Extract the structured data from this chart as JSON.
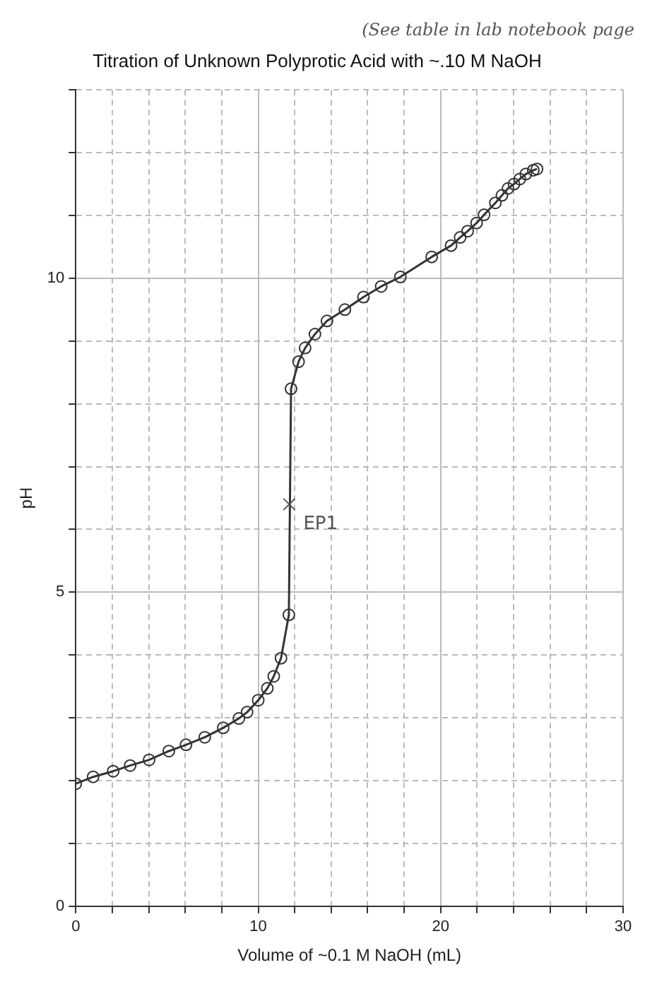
{
  "chart_data": {
    "type": "line",
    "title": "Titration of Unknown Polyprotic Acid with ~.10 M NaOH",
    "xlabel": "Volume of ~0.1 M NaOH (mL)",
    "ylabel": "pH",
    "x": [
      0,
      0.95,
      2.05,
      2.98,
      4.02,
      5.1,
      6.04,
      7.07,
      8.08,
      8.94,
      9.39,
      10.0,
      10.5,
      10.85,
      11.25,
      11.68,
      11.8,
      12.21,
      12.57,
      13.11,
      13.77,
      14.75,
      15.77,
      16.74,
      17.79,
      19.51,
      20.57,
      21.07,
      21.48,
      21.97,
      22.38,
      23.0,
      23.36,
      23.69,
      24.02,
      24.34,
      24.67,
      25.08,
      25.28
    ],
    "series": [
      {
        "color": "#333333",
        "values": [
          1.95,
          2.06,
          2.15,
          2.24,
          2.33,
          2.47,
          2.57,
          2.69,
          2.84,
          2.99,
          3.09,
          3.28,
          3.47,
          3.66,
          3.95,
          4.64,
          8.24,
          8.67,
          8.89,
          9.11,
          9.32,
          9.5,
          9.7,
          9.87,
          10.02,
          10.34,
          10.52,
          10.65,
          10.75,
          10.88,
          11.01,
          11.2,
          11.32,
          11.43,
          11.5,
          11.58,
          11.66,
          11.72,
          11.74
        ]
      }
    ],
    "xlim": [
      0,
      30
    ],
    "xticks": [
      0,
      {
        "value": 2,
        "label": null
      },
      {
        "value": 4,
        "label": null
      },
      {
        "value": 6,
        "label": null
      },
      {
        "value": 8,
        "label": null
      },
      10,
      {
        "value": 12,
        "label": null
      },
      {
        "value": 14,
        "label": null
      },
      {
        "value": 16,
        "label": null
      },
      {
        "value": 18,
        "label": null
      },
      20,
      {
        "value": 22,
        "label": null
      },
      {
        "value": 24,
        "label": null
      },
      {
        "value": 26,
        "label": null
      },
      {
        "value": 28,
        "label": null
      },
      30
    ],
    "ylim": [
      0,
      13
    ],
    "yticks": [
      0,
      {
        "value": 1,
        "label": null
      },
      {
        "value": 2,
        "label": null
      },
      {
        "value": 3,
        "label": null
      },
      {
        "value": 4,
        "label": null
      },
      5,
      {
        "value": 6,
        "label": null
      },
      {
        "value": 7,
        "label": null
      },
      {
        "value": 8,
        "label": null
      },
      {
        "value": 9,
        "label": null
      },
      10,
      {
        "value": 11,
        "label": null
      },
      {
        "value": 12,
        "label": null
      },
      {
        "value": 13,
        "label": null
      }
    ],
    "grid": true,
    "marker": "circle",
    "line_style": "solid",
    "annotations": [
      "(See table in lab notebook page",
      {
        "text": "EP1",
        "x": 11.7,
        "y": 6.4
      }
    ]
  }
}
